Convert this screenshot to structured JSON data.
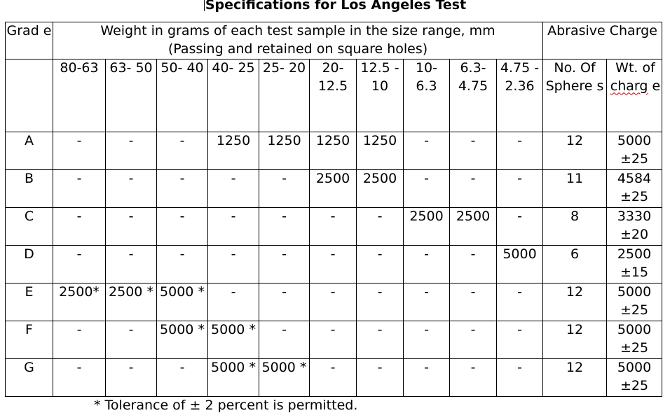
{
  "title": "Specifications for Los Angeles Test",
  "header": {
    "grade": "Grad e",
    "weight_line1": "Weight in grams of each test sample in the size range, mm",
    "weight_line2": "(Passing and retained on square holes)",
    "abrasive": "Abrasive Charge",
    "size_ranges": [
      "80-63",
      "63- 50",
      "50- 40",
      "40- 25",
      "25- 20",
      "20- 12.5",
      "12.5 - 10",
      "10- 6.3",
      "6.3- 4.75",
      "4.75 - 2.36"
    ],
    "no_spheres": "No. Of Sphere s",
    "wt_charge_a": "Wt. of ",
    "wt_charge_b": "charg",
    "wt_charge_c": " e"
  },
  "rows": [
    {
      "grade": "A",
      "cells": [
        "-",
        "-",
        "-",
        "1250",
        "1250",
        "1250",
        "1250",
        "-",
        "-",
        "-"
      ],
      "spheres": "12",
      "charge": "5000 ±25"
    },
    {
      "grade": "B",
      "cells": [
        "-",
        "-",
        "-",
        "-",
        "-",
        "2500",
        "2500",
        "-",
        "-",
        "-"
      ],
      "spheres": "11",
      "charge": "4584 ±25"
    },
    {
      "grade": "C",
      "cells": [
        "-",
        "-",
        "-",
        "-",
        "-",
        "-",
        "-",
        "2500",
        "2500",
        "-"
      ],
      "spheres": "8",
      "charge": "3330 ±20"
    },
    {
      "grade": "D",
      "cells": [
        "-",
        "-",
        "-",
        "-",
        "-",
        "-",
        "-",
        "-",
        "-",
        "5000"
      ],
      "spheres": "6",
      "charge": "2500 ±15"
    },
    {
      "grade": "E",
      "cells": [
        "2500*",
        "2500 *",
        "5000 *",
        "-",
        "-",
        "-",
        "-",
        "-",
        "-",
        "-"
      ],
      "spheres": "12",
      "charge": "5000 ±25"
    },
    {
      "grade": "F",
      "cells": [
        "-",
        "-",
        "5000 *",
        "5000 *",
        "-",
        "-",
        "-",
        "-",
        "-",
        "-"
      ],
      "spheres": "12",
      "charge": "5000 ±25"
    },
    {
      "grade": "G",
      "cells": [
        "-",
        "-",
        "-",
        "5000 *",
        "5000 *",
        "-",
        "-",
        "-",
        "-",
        "-"
      ],
      "spheres": "12",
      "charge": "5000 ±25"
    }
  ],
  "footnote": "* Tolerance of ± 2 percent is permitted."
}
